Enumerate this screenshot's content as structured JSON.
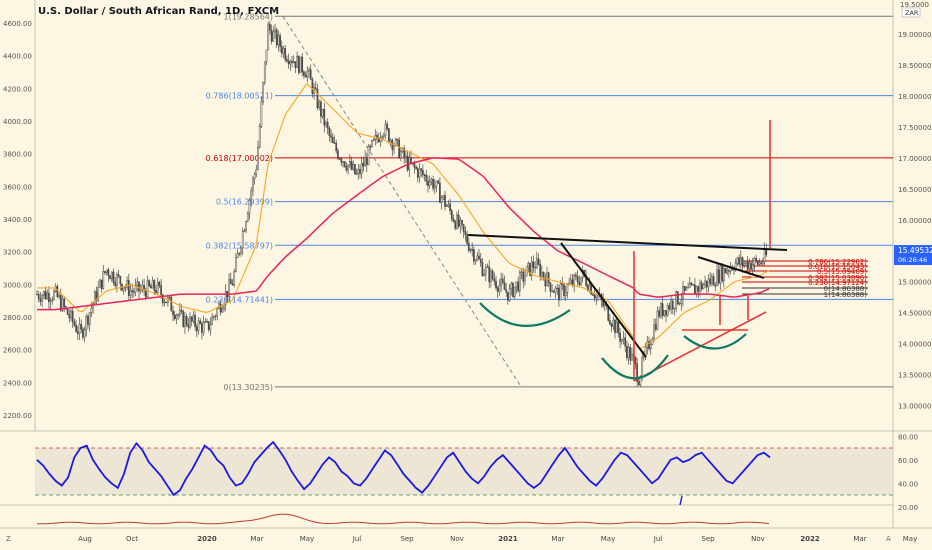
{
  "header": {
    "symbol_title": "U.S. Dollar / South African Rand, 1D, FXCM"
  },
  "colors": {
    "background": "#fdf6e3",
    "candle": "#4a4a4a",
    "ema_fast": "#f5a623",
    "ma_slow": "#e8245a",
    "rsi_line": "#1a1ae6",
    "fib_blue": "#4a86e8",
    "fib_red": "#cc0000",
    "fib_grey": "#787878",
    "trend_black": "#111111",
    "trend_red": "#e53935",
    "cup_green": "#0b7a62",
    "price_badge": "#2962ff"
  },
  "left_axis": {
    "ticks": [
      "4600.00",
      "4400.00",
      "4200.00",
      "4000.00",
      "3800.00",
      "3600.00",
      "3400.00",
      "3200.00",
      "3000.00",
      "2800.00",
      "2600.00",
      "2400.00",
      "2200.00"
    ]
  },
  "right_axis": {
    "top_value": "19.5000",
    "currency": "ZAR",
    "ticks": [
      "19.00000",
      "18.50000",
      "18.00000",
      "17.50000",
      "17.00000",
      "16.50000",
      "16.00000",
      "15.50000",
      "15.00000",
      "14.50000",
      "14.00000",
      "13.50000",
      "13.00000"
    ],
    "last_price": "15.49532",
    "countdown": "06:26:46"
  },
  "rsi_axis": {
    "ticks": [
      "80.00",
      "60.00",
      "40.00",
      "20.00"
    ]
  },
  "time_axis": {
    "labels": [
      "Aug",
      "Oct",
      "2020",
      "Mar",
      "May",
      "Jul",
      "Sep",
      "Nov",
      "2021",
      "Mar",
      "May",
      "Jul",
      "Sep",
      "Nov",
      "2022",
      "Mar",
      "May"
    ],
    "left_marker": "Z",
    "right_marker": "A"
  },
  "fib_levels": [
    {
      "label": "1(19.28564)",
      "price": 19.28564,
      "color": "grey"
    },
    {
      "label": "0.786(18.00521)",
      "price": 18.00521,
      "color": "blue"
    },
    {
      "label": "0.618(17.00002)",
      "price": 17.00002,
      "color": "red"
    },
    {
      "label": "0.5(16.29399)",
      "price": 16.29399,
      "color": "blue"
    },
    {
      "label": "0.382(15.58797)",
      "price": 15.58797,
      "color": "blue"
    },
    {
      "label": "0.236(14.71441)",
      "price": 14.71441,
      "color": "blue"
    },
    {
      "label": "0(13.30235)",
      "price": 13.30235,
      "color": "grey"
    }
  ],
  "small_fib_labels": [
    "0.786(15.22962)",
    "0.618(15.15043)",
    "0.5(15.09469)",
    "0.382(15.03896)",
    "0.236(14.97124)",
    "0(14.86388)",
    "1(14.86388)"
  ],
  "chart_data": {
    "type": "line",
    "title": "U.S. Dollar / South African Rand, 1D, FXCM",
    "xlabel": "",
    "ylabel": "",
    "x": [
      "2019-07-01",
      "2019-08-01",
      "2019-09-01",
      "2019-10-01",
      "2019-11-01",
      "2019-12-01",
      "2020-01-01",
      "2020-02-01",
      "2020-03-01",
      "2020-03-15",
      "2020-04-05",
      "2020-05-01",
      "2020-06-01",
      "2020-07-01",
      "2020-08-01",
      "2020-09-01",
      "2020-10-01",
      "2020-11-01",
      "2020-12-01",
      "2021-01-01",
      "2021-02-01",
      "2021-03-01",
      "2021-04-01",
      "2021-05-01",
      "2021-06-01",
      "2021-06-07",
      "2021-07-01",
      "2021-08-01",
      "2021-09-01",
      "2021-10-01",
      "2021-11-01",
      "2021-11-15"
    ],
    "ylim": [
      12.6,
      19.55
    ],
    "series": [
      {
        "values": [
          14.8,
          14.15,
          15.2,
          14.85,
          14.9,
          14.4,
          14.25,
          15.0,
          16.9,
          19.1,
          18.7,
          18.4,
          17.2,
          16.7,
          17.5,
          16.9,
          16.6,
          15.9,
          15.2,
          14.8,
          15.3,
          14.8,
          15.1,
          14.5,
          13.7,
          13.45,
          14.5,
          14.8,
          15.0,
          15.3,
          15.3,
          15.5
        ]
      },
      {
        "values": [
          14.9,
          14.5,
          14.85,
          14.95,
          14.8,
          14.6,
          14.5,
          14.7,
          15.6,
          16.9,
          17.7,
          18.2,
          17.8,
          17.4,
          17.3,
          17.1,
          16.9,
          16.4,
          15.8,
          15.3,
          15.1,
          15.0,
          14.9,
          14.7,
          14.1,
          13.9,
          14.1,
          14.5,
          14.7,
          15.0,
          15.1,
          15.2
        ]
      },
      {
        "values": [
          14.55,
          14.6,
          14.65,
          14.7,
          14.75,
          14.8,
          14.8,
          14.8,
          14.85,
          15.1,
          15.4,
          15.7,
          16.1,
          16.4,
          16.7,
          16.9,
          17.0,
          16.98,
          16.7,
          16.2,
          15.8,
          15.5,
          15.3,
          15.1,
          14.9,
          14.8,
          14.75,
          14.8,
          14.8,
          14.75,
          14.82,
          14.9
        ]
      }
    ]
  },
  "rsi_data": {
    "levels": [
      70,
      30
    ],
    "values": [
      60,
      55,
      48,
      42,
      38,
      45,
      62,
      70,
      72,
      60,
      52,
      45,
      40,
      36,
      48,
      66,
      74,
      68,
      58,
      52,
      46,
      38,
      30,
      34,
      44,
      52,
      62,
      72,
      68,
      60,
      55,
      45,
      38,
      40,
      48,
      58,
      64,
      70,
      75,
      68,
      60,
      50,
      42,
      35,
      40,
      48,
      56,
      62,
      58,
      50,
      46,
      40,
      38,
      44,
      52,
      60,
      68,
      64,
      56,
      48,
      42,
      36,
      32,
      38,
      46,
      54,
      62,
      66,
      58,
      50,
      44,
      40,
      46,
      54,
      60,
      64,
      58,
      52,
      46,
      40,
      36,
      40,
      48,
      56,
      64,
      70,
      62,
      54,
      48,
      42,
      38,
      44,
      52,
      60,
      66,
      64,
      58,
      52,
      46,
      40,
      44,
      52,
      60,
      62,
      58,
      60,
      64,
      66,
      60,
      54,
      48,
      42,
      40,
      46,
      52,
      58,
      64,
      66,
      62
    ]
  }
}
